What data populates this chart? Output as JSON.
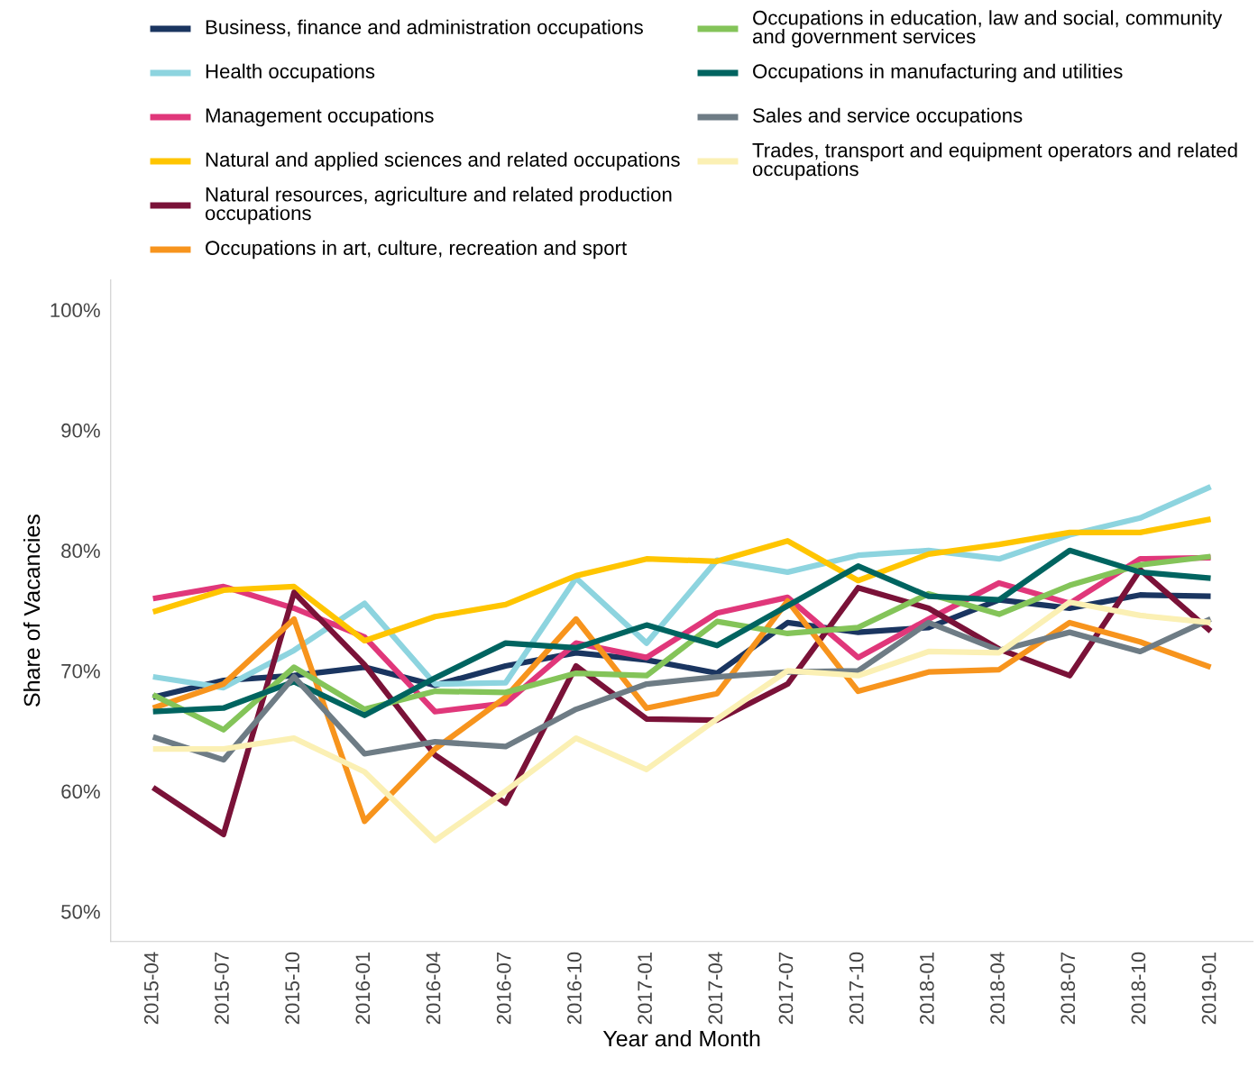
{
  "chart_data": {
    "type": "line",
    "xlabel": "Year and Month",
    "ylabel": "Share of Vacancies",
    "categories": [
      "2015-04",
      "2015-07",
      "2015-10",
      "2016-01",
      "2016-04",
      "2016-07",
      "2016-10",
      "2017-01",
      "2017-04",
      "2017-07",
      "2017-10",
      "2018-01",
      "2018-04",
      "2018-07",
      "2018-10",
      "2019-01"
    ],
    "ylim": [
      47.5,
      102.5
    ],
    "yticks": [
      {
        "value": 50,
        "label": "50%"
      },
      {
        "value": 60,
        "label": "60%"
      },
      {
        "value": 70,
        "label": "70%"
      },
      {
        "value": 80,
        "label": "80%"
      },
      {
        "value": 90,
        "label": "90%"
      },
      {
        "value": 100,
        "label": "100%"
      }
    ],
    "grid": false,
    "legend": "top",
    "marker": "none",
    "line_style": "solid",
    "series": [
      {
        "name": "Business, finance and administration occupations",
        "color": "#1a3560",
        "values": [
          67.8,
          69.2,
          69.6,
          70.3,
          68.8,
          70.4,
          71.5,
          70.9,
          69.8,
          74.0,
          73.2,
          73.6,
          75.9,
          75.2,
          76.3,
          76.2
        ]
      },
      {
        "name": "Health occupations",
        "color": "#8dd4df",
        "values": [
          69.5,
          68.6,
          71.7,
          75.6,
          68.9,
          69.0,
          77.7,
          72.3,
          79.2,
          78.2,
          79.6,
          80.0,
          79.3,
          81.3,
          82.7,
          85.3
        ]
      },
      {
        "name": "Management occupations",
        "color": "#e0377a",
        "values": [
          76.0,
          77.0,
          75.2,
          72.8,
          66.6,
          67.3,
          72.3,
          71.1,
          74.8,
          76.1,
          71.1,
          74.3,
          77.3,
          75.6,
          79.3,
          79.4
        ]
      },
      {
        "name": "Natural and applied sciences and related occupations",
        "color": "#ffc500",
        "values": [
          74.9,
          76.7,
          77.0,
          72.5,
          74.5,
          75.5,
          77.9,
          79.3,
          79.1,
          80.8,
          77.5,
          79.7,
          80.5,
          81.5,
          81.5,
          82.6
        ]
      },
      {
        "name": "Natural resources, agriculture and related production occupations",
        "color": "#7a1238",
        "values": [
          60.3,
          56.4,
          76.5,
          70.5,
          63.0,
          59.0,
          70.4,
          66.0,
          65.9,
          68.9,
          76.9,
          75.2,
          71.8,
          69.6,
          78.4,
          73.3
        ]
      },
      {
        "name": "Occupations in art, culture, recreation and sport",
        "color": "#f7941d",
        "values": [
          66.9,
          68.9,
          74.3,
          57.5,
          63.5,
          67.8,
          74.3,
          66.9,
          68.1,
          75.8,
          68.3,
          69.9,
          70.1,
          74.0,
          72.4,
          70.3
        ]
      },
      {
        "name": "Occupations in education, law and social, community and government services",
        "color": "#84c459",
        "values": [
          68.0,
          65.1,
          70.3,
          66.8,
          68.3,
          68.2,
          69.8,
          69.6,
          74.1,
          73.1,
          73.6,
          76.4,
          74.7,
          77.1,
          78.8,
          79.5
        ]
      },
      {
        "name": "Occupations in manufacturing and utilities",
        "color": "#006460",
        "values": [
          66.6,
          66.9,
          69.1,
          66.3,
          69.4,
          72.3,
          71.9,
          73.8,
          72.1,
          75.4,
          78.7,
          76.2,
          75.9,
          80.0,
          78.2,
          77.7
        ]
      },
      {
        "name": "Sales and service occupations",
        "color": "#6e7c85",
        "values": [
          64.5,
          62.6,
          69.5,
          63.1,
          64.1,
          63.7,
          66.8,
          68.9,
          69.5,
          69.9,
          70.0,
          74.0,
          71.7,
          73.2,
          71.6,
          74.3
        ]
      },
      {
        "name": "Trades, transport and equipment operators and related occupations",
        "color": "#fbf0b4",
        "values": [
          63.5,
          63.5,
          64.4,
          61.6,
          55.9,
          60.0,
          64.4,
          61.8,
          66.0,
          70.0,
          69.6,
          71.6,
          71.5,
          75.7,
          74.6,
          74.0
        ]
      }
    ]
  }
}
